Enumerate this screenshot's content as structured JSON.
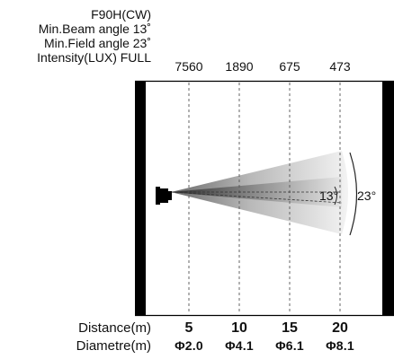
{
  "specs": {
    "model": "F90H(CW)",
    "beam_angle": "Min.Beam angle 13˚",
    "field_angle": "Min.Field angle 23˚",
    "intensity_label": "Intensity(LUX) FULL"
  },
  "lux_values": [
    "7560",
    "1890",
    "675",
    "473"
  ],
  "angles": {
    "beam": "13°",
    "field": "23°"
  },
  "rows": {
    "distance_label": "Distance(m)",
    "diameter_label": "Diametre(m)"
  },
  "distances": [
    "5",
    "10",
    "15",
    "20"
  ],
  "diameters": [
    "Φ2.0",
    "Φ4.1",
    "Φ6.1",
    "Φ8.1"
  ]
}
